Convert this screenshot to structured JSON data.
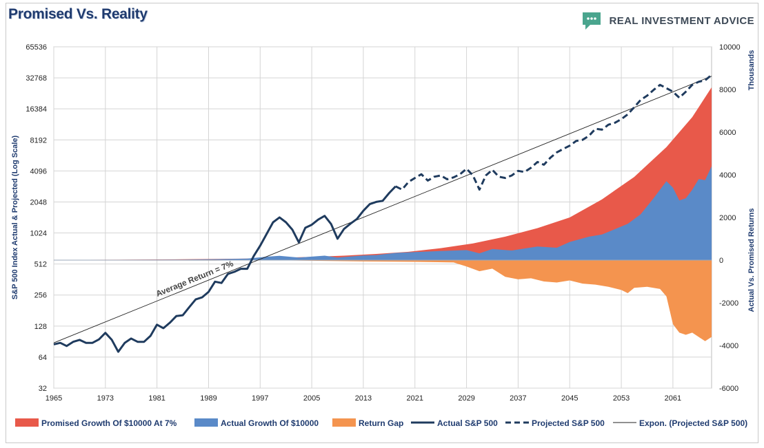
{
  "header": {
    "title": "Promised Vs. Reality",
    "brand_name": "REAL INVESTMENT ADVICE",
    "brand_icon": "speech-bubble-logo-icon"
  },
  "colors": {
    "promised": "#e8594a",
    "actual": "#5a8ac8",
    "gap": "#f4944f",
    "line": "#1f3b5e",
    "grid": "#d4d4d4",
    "brand_green": "#4aa58e"
  },
  "chart_data": {
    "type": "area",
    "title": "Promised Vs. Reality",
    "y_left_label": "S&P 500 Index Actual & Projected (Log Scale)",
    "y_right_label": "Actual Vs. Promised Returns",
    "y_right_unit": "Thousands",
    "y_left_scale": "log2",
    "y_left_ticks": [
      "32",
      "64",
      "128",
      "256",
      "512",
      "1024",
      "2048",
      "4096",
      "8192",
      "16384",
      "32768",
      "65536"
    ],
    "y_right_ticks": [
      "-6000",
      "-4000",
      "-2000",
      "0",
      "2000",
      "4000",
      "6000",
      "8000",
      "10000"
    ],
    "y_right_range": [
      -6000,
      10000
    ],
    "x_ticks": [
      "1965",
      "1973",
      "1981",
      "1989",
      "1997",
      "2005",
      "2013",
      "2021",
      "2029",
      "2037",
      "2045",
      "2053",
      "2061"
    ],
    "x_range": [
      1965,
      2067
    ],
    "grid": true,
    "legend_position": "bottom",
    "annotation": "Average Return = 7%",
    "legend": [
      {
        "key": "promised",
        "label": "Promised Growth Of $10000 At 7%",
        "kind": "area"
      },
      {
        "key": "actual",
        "label": "Actual Growth Of $10000",
        "kind": "area"
      },
      {
        "key": "gap",
        "label": "Return Gap",
        "kind": "area"
      },
      {
        "key": "sp_actual",
        "label": "Actual S&P 500",
        "kind": "line"
      },
      {
        "key": "sp_projected",
        "label": "Projected S&P 500",
        "kind": "dashed"
      },
      {
        "key": "expon",
        "label": "Expon. (Projected S&P 500)",
        "kind": "thin"
      }
    ],
    "series": {
      "sp_actual": {
        "name": "Actual S&P 500",
        "points": [
          [
            1965,
            85
          ],
          [
            1966,
            88
          ],
          [
            1967,
            82
          ],
          [
            1968,
            90
          ],
          [
            1969,
            94
          ],
          [
            1970,
            88
          ],
          [
            1971,
            88
          ],
          [
            1972,
            95
          ],
          [
            1973,
            110
          ],
          [
            1974,
            94
          ],
          [
            1975,
            72
          ],
          [
            1976,
            88
          ],
          [
            1977,
            97
          ],
          [
            1978,
            90
          ],
          [
            1979,
            90
          ],
          [
            1980,
            103
          ],
          [
            1981,
            132
          ],
          [
            1982,
            122
          ],
          [
            1983,
            138
          ],
          [
            1984,
            160
          ],
          [
            1985,
            163
          ],
          [
            1986,
            195
          ],
          [
            1987,
            232
          ],
          [
            1988,
            243
          ],
          [
            1989,
            275
          ],
          [
            1990,
            345
          ],
          [
            1991,
            335
          ],
          [
            1992,
            410
          ],
          [
            1993,
            430
          ],
          [
            1994,
            460
          ],
          [
            1995,
            460
          ],
          [
            1996,
            610
          ],
          [
            1997,
            770
          ],
          [
            1998,
            1000
          ],
          [
            1999,
            1300
          ],
          [
            2000,
            1450
          ],
          [
            2001,
            1300
          ],
          [
            2002,
            1100
          ],
          [
            2003,
            830
          ],
          [
            2004,
            1150
          ],
          [
            2005,
            1230
          ],
          [
            2006,
            1380
          ],
          [
            2007,
            1500
          ],
          [
            2008,
            1250
          ],
          [
            2009,
            900
          ],
          [
            2010,
            1120
          ],
          [
            2011,
            1260
          ],
          [
            2012,
            1400
          ],
          [
            2013,
            1680
          ],
          [
            2014,
            1950
          ],
          [
            2015,
            2050
          ],
          [
            2016,
            2100
          ],
          [
            2017,
            2500
          ],
          [
            2018,
            2900
          ]
        ]
      },
      "sp_projected": {
        "name": "Projected S&P 500",
        "points": [
          [
            2018,
            2900
          ],
          [
            2019,
            2700
          ],
          [
            2020,
            3200
          ],
          [
            2021,
            3500
          ],
          [
            2022,
            3800
          ],
          [
            2023,
            3300
          ],
          [
            2024,
            3600
          ],
          [
            2025,
            3700
          ],
          [
            2026,
            3400
          ],
          [
            2027,
            3550
          ],
          [
            2028,
            3800
          ],
          [
            2029,
            4300
          ],
          [
            2030,
            3700
          ],
          [
            2031,
            2700
          ],
          [
            2032,
            3700
          ],
          [
            2033,
            4200
          ],
          [
            2034,
            3600
          ],
          [
            2035,
            3500
          ],
          [
            2036,
            3700
          ],
          [
            2037,
            4100
          ],
          [
            2038,
            4000
          ],
          [
            2039,
            4400
          ],
          [
            2040,
            5000
          ],
          [
            2041,
            4700
          ],
          [
            2042,
            5500
          ],
          [
            2043,
            6200
          ],
          [
            2044,
            6700
          ],
          [
            2045,
            7200
          ],
          [
            2046,
            8000
          ],
          [
            2047,
            8200
          ],
          [
            2048,
            9000
          ],
          [
            2049,
            10500
          ],
          [
            2050,
            10300
          ],
          [
            2051,
            11500
          ],
          [
            2052,
            12000
          ],
          [
            2053,
            13000
          ],
          [
            2054,
            14500
          ],
          [
            2055,
            17000
          ],
          [
            2056,
            20000
          ],
          [
            2057,
            22000
          ],
          [
            2058,
            25000
          ],
          [
            2059,
            28000
          ],
          [
            2060,
            26000
          ],
          [
            2061,
            24000
          ],
          [
            2062,
            21000
          ],
          [
            2063,
            24000
          ],
          [
            2064,
            28000
          ],
          [
            2065,
            30000
          ],
          [
            2066,
            31000
          ],
          [
            2067,
            35000
          ]
        ]
      },
      "expon": {
        "name": "Expon. (Projected S&P 500)",
        "points": [
          [
            1965,
            88
          ],
          [
            2067,
            34000
          ]
        ]
      },
      "promised": {
        "name": "Promised Growth Of $10000 At 7%",
        "points": [
          [
            1965,
            10
          ],
          [
            1975,
            20
          ],
          [
            1985,
            38
          ],
          [
            1990,
            55
          ],
          [
            1995,
            70
          ],
          [
            2000,
            110
          ],
          [
            2005,
            155
          ],
          [
            2010,
            210
          ],
          [
            2015,
            290
          ],
          [
            2020,
            390
          ],
          [
            2025,
            560
          ],
          [
            2030,
            780
          ],
          [
            2035,
            1100
          ],
          [
            2040,
            1500
          ],
          [
            2045,
            2000
          ],
          [
            2050,
            2850
          ],
          [
            2055,
            3900
          ],
          [
            2060,
            5300
          ],
          [
            2064,
            6700
          ],
          [
            2067,
            8100
          ]
        ]
      },
      "actual": {
        "name": "Actual Growth Of $10000",
        "points": [
          [
            1965,
            10
          ],
          [
            1975,
            15
          ],
          [
            1985,
            25
          ],
          [
            1990,
            45
          ],
          [
            1995,
            70
          ],
          [
            1998,
            160
          ],
          [
            2000,
            200
          ],
          [
            2003,
            120
          ],
          [
            2007,
            210
          ],
          [
            2009,
            120
          ],
          [
            2013,
            220
          ],
          [
            2015,
            240
          ],
          [
            2018,
            340
          ],
          [
            2021,
            380
          ],
          [
            2025,
            430
          ],
          [
            2029,
            470
          ],
          [
            2031,
            320
          ],
          [
            2033,
            520
          ],
          [
            2036,
            450
          ],
          [
            2040,
            640
          ],
          [
            2043,
            580
          ],
          [
            2045,
            850
          ],
          [
            2048,
            1100
          ],
          [
            2050,
            1200
          ],
          [
            2052,
            1450
          ],
          [
            2054,
            1700
          ],
          [
            2056,
            2150
          ],
          [
            2058,
            2900
          ],
          [
            2060,
            3700
          ],
          [
            2061,
            3400
          ],
          [
            2062,
            2800
          ],
          [
            2063,
            2900
          ],
          [
            2064,
            3300
          ],
          [
            2065,
            3800
          ],
          [
            2066,
            3750
          ],
          [
            2067,
            4400
          ]
        ]
      },
      "gap": {
        "name": "Return Gap",
        "points": [
          [
            1965,
            -10
          ],
          [
            1980,
            -15
          ],
          [
            1990,
            -20
          ],
          [
            1997,
            0
          ],
          [
            2005,
            -30
          ],
          [
            2013,
            -60
          ],
          [
            2021,
            -80
          ],
          [
            2027,
            -110
          ],
          [
            2029,
            -300
          ],
          [
            2031,
            -520
          ],
          [
            2033,
            -400
          ],
          [
            2035,
            -780
          ],
          [
            2037,
            -900
          ],
          [
            2039,
            -850
          ],
          [
            2041,
            -1000
          ],
          [
            2043,
            -1050
          ],
          [
            2045,
            -950
          ],
          [
            2047,
            -1100
          ],
          [
            2049,
            -1150
          ],
          [
            2051,
            -1250
          ],
          [
            2053,
            -1400
          ],
          [
            2054,
            -1550
          ],
          [
            2055,
            -1300
          ],
          [
            2057,
            -1250
          ],
          [
            2059,
            -1350
          ],
          [
            2060,
            -1700
          ],
          [
            2061,
            -3000
          ],
          [
            2062,
            -3400
          ],
          [
            2063,
            -3500
          ],
          [
            2064,
            -3400
          ],
          [
            2065,
            -3600
          ],
          [
            2066,
            -3800
          ],
          [
            2067,
            -3600
          ]
        ]
      }
    }
  }
}
